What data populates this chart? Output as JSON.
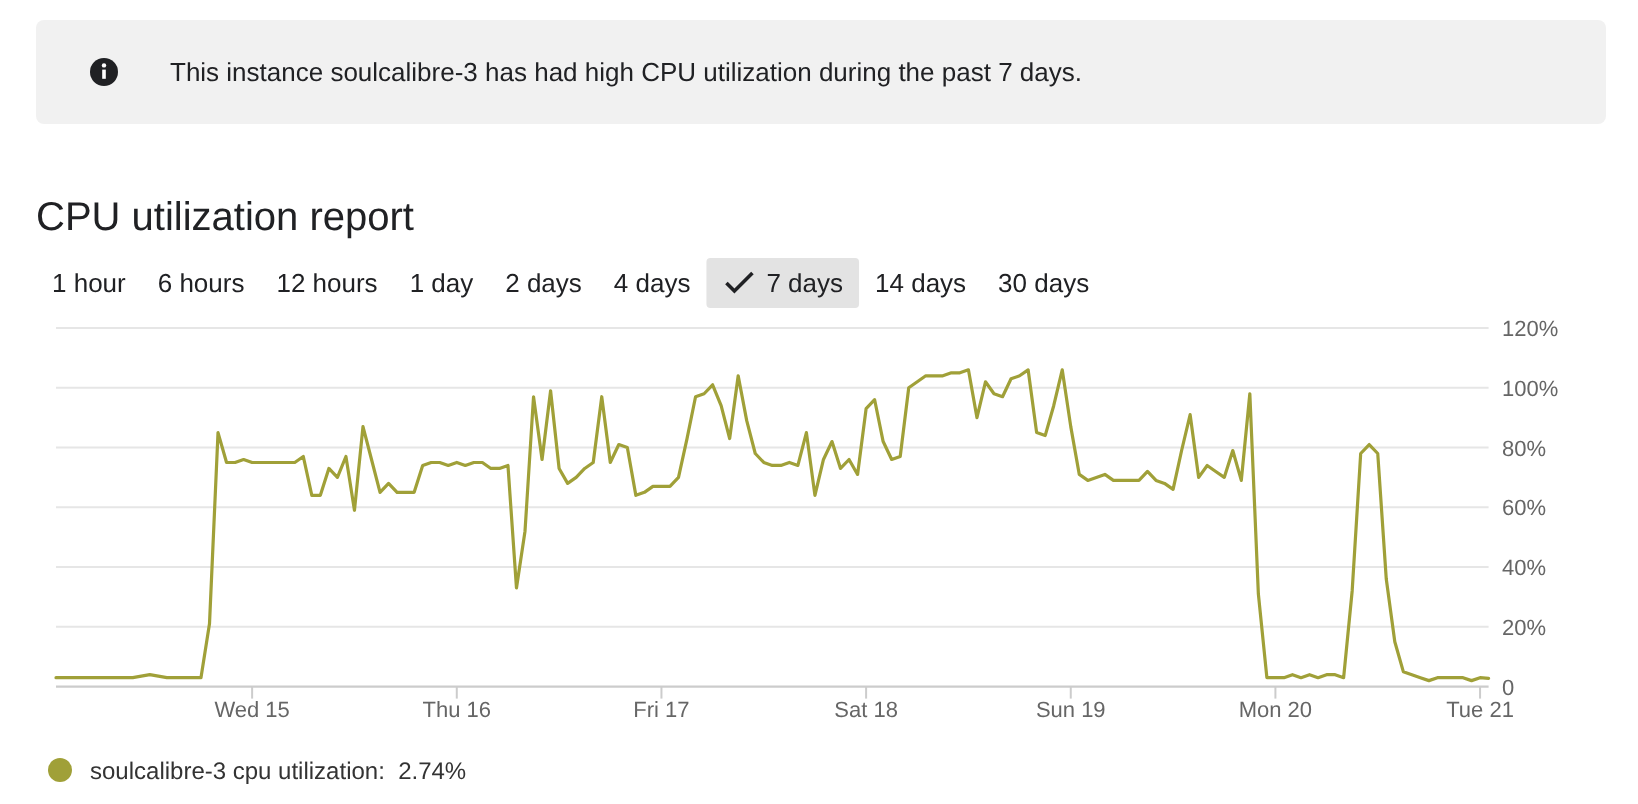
{
  "chart_data": {
    "type": "line",
    "title": "CPU utilization report",
    "annotations": [
      "This instance soulcalibre-3 has had high CPU utilization during the past 7 days.",
      "1 hour",
      "6 hours",
      "12 hours",
      "1 day",
      "2 days",
      "4 days",
      "7 days",
      "14 days",
      "30 days"
    ],
    "x": [
      "--03-14T01:00",
      "--03-14T02:00",
      "--03-14T04:00",
      "--03-14T05:00",
      "--03-14T06:00",
      "--03-14T09:00",
      "--03-14T10:00",
      "--03-14T12:00",
      "--03-14T14:00",
      "--03-14T15:00",
      "--03-14T17:00",
      "--03-14T18:00",
      "--03-14T19:00",
      "--03-14T20:00",
      "--03-14T21:00",
      "--03-14T22:00",
      "--03-14T23:00",
      "--03-15T00:00",
      "--03-15T01:00",
      "--03-15T05:00",
      "--03-15T06:00",
      "--03-15T07:00",
      "--03-15T08:00",
      "--03-15T09:00",
      "--03-15T10:00",
      "--03-15T11:00",
      "--03-15T12:00",
      "--03-15T13:00",
      "--03-15T14:00",
      "--03-15T15:00",
      "--03-15T16:00",
      "--03-15T17:00",
      "--03-15T18:00",
      "--03-15T19:00",
      "--03-15T20:00",
      "--03-15T21:00",
      "--03-15T22:00",
      "--03-15T23:00",
      "--03-16T00:00",
      "--03-16T01:00",
      "--03-16T02:00",
      "--03-16T03:00",
      "--03-16T04:00",
      "--03-16T05:00",
      "--03-16T06:00",
      "--03-16T07:00",
      "--03-16T08:00",
      "--03-16T09:00",
      "--03-16T10:00",
      "--03-16T11:00",
      "--03-16T12:00",
      "--03-16T13:00",
      "--03-16T14:00",
      "--03-16T15:00",
      "--03-16T16:00",
      "--03-16T17:00",
      "--03-16T18:00",
      "--03-16T19:00",
      "--03-16T20:00",
      "--03-16T21:00",
      "--03-16T22:00",
      "--03-16T23:00",
      "--03-17T00:00",
      "--03-17T01:00",
      "--03-17T02:00",
      "--03-17T03:00",
      "--03-17T04:00",
      "--03-17T05:00",
      "--03-17T06:00",
      "--03-17T07:00",
      "--03-17T08:00",
      "--03-17T09:00",
      "--03-17T10:00",
      "--03-17T11:00",
      "--03-17T12:00",
      "--03-17T13:00",
      "--03-17T14:00",
      "--03-17T15:00",
      "--03-17T16:00",
      "--03-17T17:00",
      "--03-17T18:00",
      "--03-17T19:00",
      "--03-17T20:00",
      "--03-17T21:00",
      "--03-17T22:00",
      "--03-17T23:00",
      "--03-18T00:00",
      "--03-18T01:00",
      "--03-18T02:00",
      "--03-18T03:00",
      "--03-18T04:00",
      "--03-18T05:00",
      "--03-18T06:00",
      "--03-18T07:00",
      "--03-18T08:00",
      "--03-18T09:00",
      "--03-18T10:00",
      "--03-18T11:00",
      "--03-18T12:00",
      "--03-18T13:00",
      "--03-18T14:00",
      "--03-18T15:00",
      "--03-18T16:00",
      "--03-18T17:00",
      "--03-18T18:00",
      "--03-18T19:00",
      "--03-18T20:00",
      "--03-18T21:00",
      "--03-18T22:00",
      "--03-18T23:00",
      "--03-19T00:00",
      "--03-19T01:00",
      "--03-19T02:00",
      "--03-19T03:00",
      "--03-19T04:00",
      "--03-19T05:00",
      "--03-19T06:00",
      "--03-19T07:00",
      "--03-19T08:00",
      "--03-19T09:00",
      "--03-19T10:00",
      "--03-19T11:00",
      "--03-19T12:00",
      "--03-19T13:00",
      "--03-19T14:00",
      "--03-19T15:00",
      "--03-19T16:00",
      "--03-19T17:00",
      "--03-19T18:00",
      "--03-19T19:00",
      "--03-19T20:00",
      "--03-19T21:00",
      "--03-19T22:00",
      "--03-19T23:00",
      "--03-20T00:00",
      "--03-20T01:00",
      "--03-20T02:00",
      "--03-20T03:00",
      "--03-20T04:00",
      "--03-20T05:00",
      "--03-20T06:00",
      "--03-20T07:00",
      "--03-20T08:00",
      "--03-20T09:00",
      "--03-20T10:00",
      "--03-20T11:00",
      "--03-20T12:00",
      "--03-20T13:00",
      "--03-20T14:00",
      "--03-20T15:00",
      "--03-20T16:00",
      "--03-20T17:00",
      "--03-20T18:00",
      "--03-20T19:00",
      "--03-20T20:00",
      "--03-20T21:00",
      "--03-20T22:00",
      "--03-20T23:00",
      "--03-21T00:00",
      "--03-21T01:00"
    ],
    "series": [
      {
        "name": "soulcalibre-3 cpu utilization:  2.74%",
        "color": "#a0a038",
        "values": [
          3,
          3,
          3,
          3,
          3,
          3,
          3,
          4,
          3,
          3,
          3,
          3,
          21,
          85,
          75,
          75,
          76,
          75,
          75,
          75,
          77,
          64,
          64,
          73,
          70,
          77,
          59,
          87,
          76,
          65,
          68,
          65,
          65,
          65,
          74,
          75,
          75,
          74,
          75,
          74,
          75,
          75,
          73,
          73,
          74,
          33,
          52,
          97,
          76,
          99,
          73,
          68,
          70,
          73,
          75,
          97,
          75,
          81,
          80,
          64,
          65,
          67,
          67,
          67,
          70,
          83,
          97,
          98,
          101,
          94,
          83,
          104,
          89,
          78,
          75,
          74,
          74,
          75,
          74,
          85,
          64,
          76,
          82,
          73,
          76,
          71,
          93,
          96,
          82,
          76,
          77,
          100,
          102,
          104,
          104,
          104,
          105,
          105,
          106,
          90,
          102,
          98,
          97,
          103,
          104,
          106,
          85,
          84,
          94,
          106,
          87,
          71,
          69,
          70,
          71,
          69,
          69,
          69,
          69,
          72,
          69,
          68,
          66,
          79,
          91,
          70,
          74,
          72,
          70,
          79,
          69,
          98,
          31,
          3,
          3,
          3,
          4,
          3,
          4,
          3,
          4,
          4,
          3,
          32,
          78,
          81,
          78,
          36,
          15,
          5,
          4,
          3,
          2,
          3,
          3,
          3,
          3,
          2,
          3,
          2.74
        ]
      }
    ],
    "xlim": [
      "--03-14T01:00",
      "--03-21T01:00"
    ],
    "xticks": [
      {
        "value": "--03-15",
        "label": "Wed 15"
      },
      {
        "value": "--03-16",
        "label": "Thu 16"
      },
      {
        "value": "--03-17",
        "label": "Fri 17"
      },
      {
        "value": "--03-18",
        "label": "Sat 18"
      },
      {
        "value": "--03-19",
        "label": "Sun 19"
      },
      {
        "value": "--03-20",
        "label": "Mon 20"
      },
      {
        "value": "--03-21",
        "label": "Tue 21"
      }
    ],
    "ylim": [
      0,
      120
    ],
    "yticks": [
      0,
      {
        "value": 20,
        "label": "20%"
      },
      {
        "value": 40,
        "label": "40%"
      },
      {
        "value": 60,
        "label": "60%"
      },
      {
        "value": 80,
        "label": "80%"
      },
      {
        "value": 100,
        "label": "100%"
      },
      {
        "value": 120,
        "label": "120%"
      }
    ],
    "grid": "y",
    "legend": "bottom left"
  }
}
